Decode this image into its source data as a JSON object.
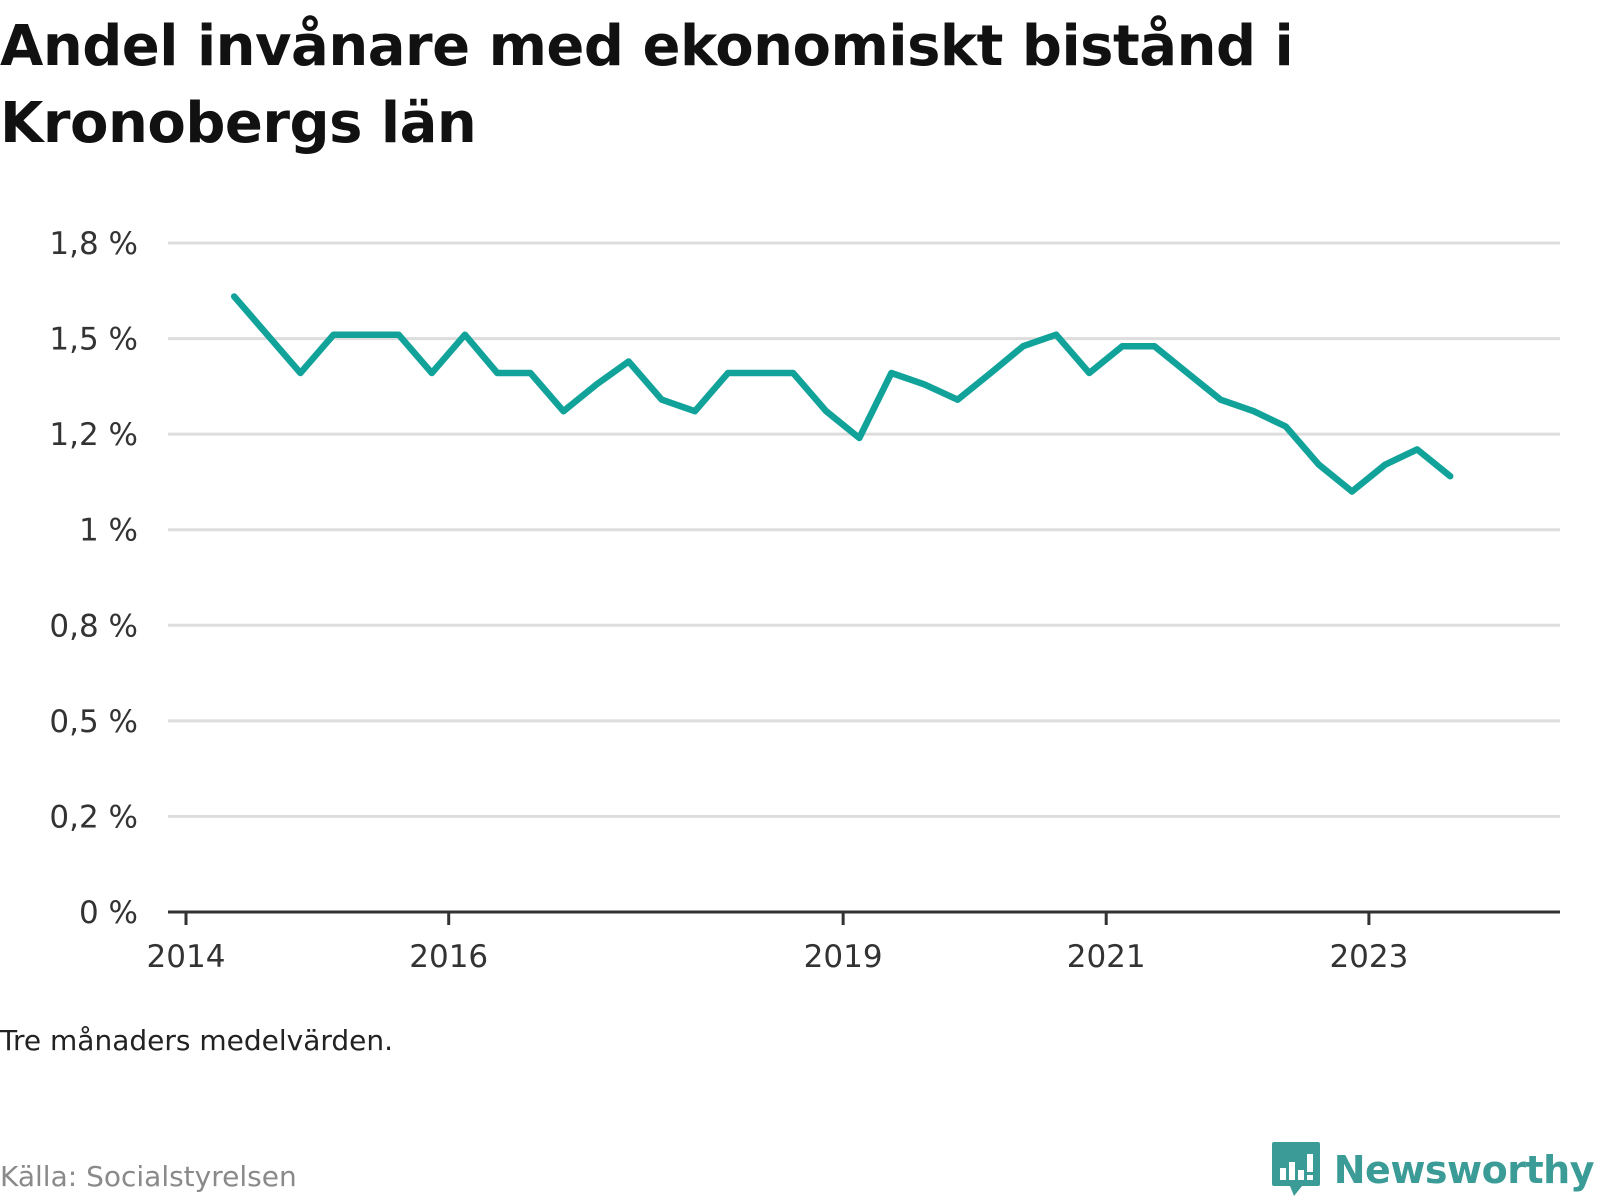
{
  "header": {
    "title": "Andel invånare med ekonomiskt bistånd i Kronobergs län"
  },
  "footer": {
    "note": "Tre månaders medelvärden.",
    "source": "Källa: Socialstyrelsen",
    "brand": "Newsworthy",
    "brand_icon": "newsworthy-logo-icon"
  },
  "colors": {
    "line": "#11a39a",
    "grid": "#dddddd",
    "axis": "#333333",
    "brand": "#3b9b96"
  },
  "chart_data": {
    "type": "line",
    "title": "Andel invånare med ekonomiskt bistånd i Kronobergs län",
    "xlabel": "",
    "ylabel": "",
    "ylim": [
      0,
      1.75
    ],
    "xlim": [
      "2014-01-01",
      "2024-06-15"
    ],
    "y_ticks": [
      {
        "value": 0,
        "label": "0 %"
      },
      {
        "value": 0.25,
        "label": "0,2 %"
      },
      {
        "value": 0.5,
        "label": "0,5 %"
      },
      {
        "value": 0.75,
        "label": "0,8 %"
      },
      {
        "value": 1.0,
        "label": "1 %"
      },
      {
        "value": 1.25,
        "label": "1,2 %"
      },
      {
        "value": 1.5,
        "label": "1,5 %"
      },
      {
        "value": 1.75,
        "label": "1,8 %"
      }
    ],
    "x_ticks": [
      {
        "value": "2014-01-01",
        "label": "2014"
      },
      {
        "value": "2016-01-01",
        "label": "2016"
      },
      {
        "value": "2019-01-01",
        "label": "2019"
      },
      {
        "value": "2021-01-01",
        "label": "2021"
      },
      {
        "value": "2023-01-01",
        "label": "2023"
      }
    ],
    "grid": true,
    "legend": "none",
    "series": [
      {
        "x": [
          "2014-05-15",
          "2014-08-15",
          "2014-11-15",
          "2015-02-15",
          "2015-05-15",
          "2015-08-15",
          "2015-11-15",
          "2016-02-15",
          "2016-05-15",
          "2016-08-15",
          "2016-11-15",
          "2017-02-15",
          "2017-05-15",
          "2017-08-15",
          "2017-11-15",
          "2018-02-15",
          "2018-05-15",
          "2018-08-15",
          "2018-11-15",
          "2019-02-15",
          "2019-05-15",
          "2019-08-15",
          "2019-11-15",
          "2020-02-15",
          "2020-05-15",
          "2020-08-15",
          "2020-11-15",
          "2021-02-15",
          "2021-05-15",
          "2021-08-15",
          "2021-11-15",
          "2022-02-15",
          "2022-05-15",
          "2022-08-15",
          "2022-11-15",
          "2023-02-15",
          "2023-05-15",
          "2023-08-15"
        ],
        "values": [
          1.61,
          1.51,
          1.41,
          1.51,
          1.51,
          1.51,
          1.41,
          1.51,
          1.41,
          1.41,
          1.31,
          1.38,
          1.44,
          1.34,
          1.31,
          1.41,
          1.41,
          1.41,
          1.31,
          1.24,
          1.41,
          1.38,
          1.34,
          1.41,
          1.48,
          1.51,
          1.41,
          1.48,
          1.48,
          1.41,
          1.34,
          1.31,
          1.27,
          1.17,
          1.1,
          1.17,
          1.21,
          1.14
        ]
      }
    ]
  }
}
